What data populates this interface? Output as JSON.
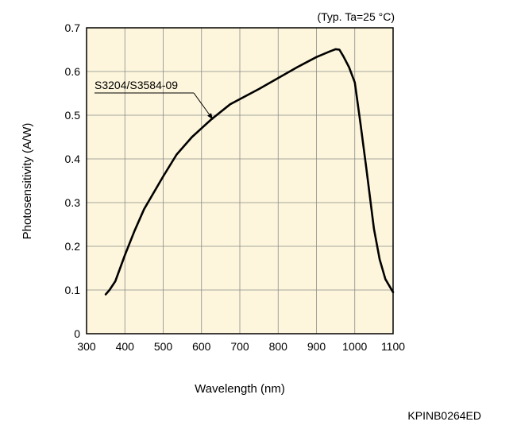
{
  "chart_data": {
    "type": "line",
    "condition": "(Typ. Ta=25 °C)",
    "xlabel": "Wavelength (nm)",
    "ylabel": "Photosensitivity (A/W)",
    "xlim": [
      300,
      1100
    ],
    "ylim": [
      0,
      0.7
    ],
    "xticks": [
      300,
      400,
      500,
      600,
      700,
      800,
      900,
      1000,
      1100
    ],
    "yticks": [
      0,
      0.1,
      0.2,
      0.3,
      0.4,
      0.5,
      0.6,
      0.7
    ],
    "ytick_labels": [
      "0",
      "0.1",
      "0.2",
      "0.3",
      "0.4",
      "0.5",
      "0.6",
      "0.7"
    ],
    "grid": true,
    "background": "#fdf6dc",
    "line_color": "#000000",
    "series": [
      {
        "name": "S3204/S3584-09",
        "x": [
          350,
          360,
          375,
          400,
          425,
          450,
          500,
          535,
          575,
          625,
          675,
          750,
          850,
          900,
          935,
          950,
          960,
          970,
          985,
          1000,
          1015,
          1030,
          1050,
          1065,
          1080,
          1100
        ],
        "y": [
          0.09,
          0.1,
          0.12,
          0.18,
          0.235,
          0.285,
          0.36,
          0.41,
          0.45,
          0.49,
          0.525,
          0.56,
          0.61,
          0.633,
          0.646,
          0.651,
          0.65,
          0.635,
          0.61,
          0.575,
          0.48,
          0.38,
          0.24,
          0.17,
          0.125,
          0.095
        ]
      }
    ],
    "annotation": {
      "text": "S3204/S3584-09",
      "points_to": {
        "x": 630,
        "y": 0.49
      }
    }
  },
  "figure_code": "KPINB0264ED"
}
